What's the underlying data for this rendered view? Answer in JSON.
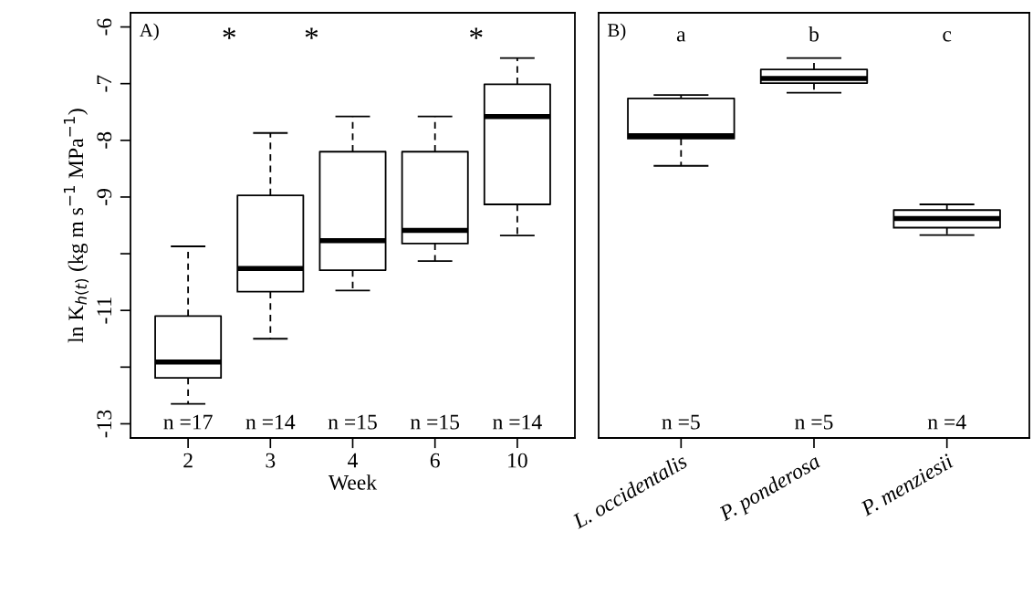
{
  "chart_data": [
    {
      "type": "box",
      "xlabel": "Week",
      "ylabel": "ln K$_{h(t)}$ (kg m s$^{−1}$ MPa$^{−1}$)",
      "categories": [
        "2",
        "3",
        "4",
        "6",
        "10"
      ],
      "boxes": [
        {
          "low": -12.65,
          "q1": -12.19,
          "median": -11.91,
          "q3": -11.1,
          "high": -9.87
        },
        {
          "low": -11.5,
          "q1": -10.67,
          "median": -10.26,
          "q3": -8.97,
          "high": -7.87
        },
        {
          "low": -10.65,
          "q1": -10.29,
          "median": -9.77,
          "q3": -8.2,
          "high": -7.58
        },
        {
          "low": -10.13,
          "q1": -9.82,
          "median": -9.59,
          "q3": -8.2,
          "high": -7.58
        },
        {
          "low": -9.68,
          "q1": -9.13,
          "median": -7.58,
          "q3": -7.01,
          "high": -6.55
        }
      ],
      "ylim": [
        -13.25,
        -5.75
      ],
      "yticks": [
        -6,
        -7,
        -8,
        -9,
        {
          "value": -10,
          "label": null
        },
        -11,
        {
          "value": -12,
          "label": null
        },
        -13
      ],
      "annotations": [
        "A)",
        "*",
        "*",
        "*",
        "n =17",
        "n =14",
        "n =15",
        "n =15",
        "n =14"
      ]
    },
    {
      "type": "box",
      "categories": [
        "L. occidentalis",
        "P. ponderosa",
        "P. menziesii"
      ],
      "boxes": [
        {
          "low": -8.45,
          "q1": -7.97,
          "median": -7.92,
          "q3": -7.26,
          "high": -7.2
        },
        {
          "low": -7.16,
          "q1": -6.99,
          "median": -6.91,
          "q3": -6.75,
          "high": -6.55
        },
        {
          "low": -9.67,
          "q1": -9.54,
          "median": -9.38,
          "q3": -9.23,
          "high": -9.13
        }
      ],
      "ylim": [
        -13.25,
        -5.75
      ],
      "tick_labels": "x",
      "annotations": [
        "B)",
        "a",
        "b",
        "c",
        "n =5",
        "n =5",
        "n =4"
      ]
    }
  ]
}
